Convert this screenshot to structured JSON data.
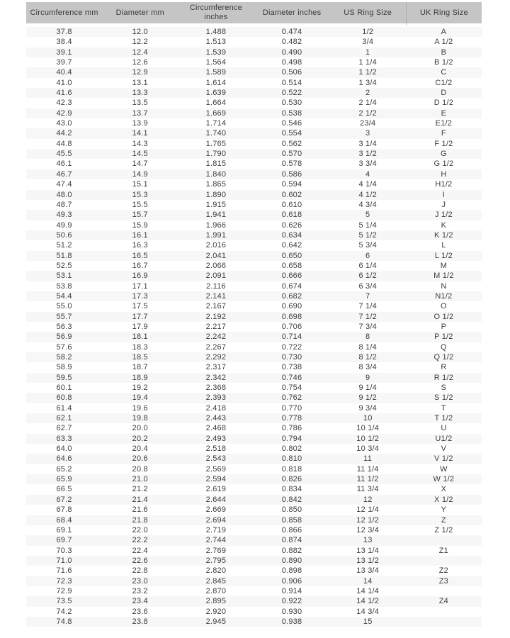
{
  "colors": {
    "header_bg": "#c5c5c5",
    "header_text": "#3a3a3a",
    "body_text": "#3c3c3c",
    "row_stripe": "#f7f7f7",
    "page_bg": "#ffffff"
  },
  "table": {
    "columns": [
      "Circumference mm",
      "Diameter mm",
      "Circumference inches",
      "Diameter inches",
      "US Ring Size",
      "UK Ring Size"
    ],
    "rows": [
      [
        "37.8",
        "12.0",
        "1.488",
        "0.474",
        "1/2",
        "A"
      ],
      [
        "38.4",
        "12.2",
        "1.513",
        "0.482",
        "3/4",
        "A 1/2"
      ],
      [
        "39.1",
        "12.4",
        "1.539",
        "0.490",
        "1",
        "B"
      ],
      [
        "39.7",
        "12.6",
        "1.564",
        "0.498",
        "1 1/4",
        "B 1/2"
      ],
      [
        "40.4",
        "12.9",
        "1.589",
        "0.506",
        "1 1/2",
        "C"
      ],
      [
        "41.0",
        "13.1",
        "1.614",
        "0.514",
        "1 3/4",
        "C1/2"
      ],
      [
        "41.6",
        "13.3",
        "1.639",
        "0.522",
        "2",
        "D"
      ],
      [
        "42.3",
        "13.5",
        "1.664",
        "0.530",
        "2 1/4",
        "D 1/2"
      ],
      [
        "42.9",
        "13.7",
        "1.669",
        "0.538",
        "2 1/2",
        "E"
      ],
      [
        "43.0",
        "13.9",
        "1.714",
        "0.546",
        "23/4",
        "E1/2"
      ],
      [
        "44.2",
        "14.1",
        "1.740",
        "0.554",
        "3",
        "F"
      ],
      [
        "44.8",
        "14.3",
        "1.765",
        "0.562",
        "3 1/4",
        "F 1/2"
      ],
      [
        "45.5",
        "14.5",
        "1.790",
        "0.570",
        "3 1/2",
        "G"
      ],
      [
        "46.1",
        "14.7",
        "1.815",
        "0.578",
        "3 3/4",
        "G 1/2"
      ],
      [
        "46.7",
        "14.9",
        "1.840",
        "0.586",
        "4",
        "H"
      ],
      [
        "47.4",
        "15.1",
        "1.865",
        "0.594",
        "4 1/4",
        "H1/2"
      ],
      [
        "48.0",
        "15.3",
        "1.890",
        "0.602",
        "4 1/2",
        "I"
      ],
      [
        "48.7",
        "15.5",
        "1.915",
        "0.610",
        "4 3/4",
        "J"
      ],
      [
        "49.3",
        "15.7",
        "1.941",
        "0.618",
        "5",
        "J 1/2"
      ],
      [
        "49.9",
        "15.9",
        "1.966",
        "0.626",
        "5 1/4",
        "K"
      ],
      [
        "50.6",
        "16.1",
        "1.991",
        "0.634",
        "5 1/2",
        "K 1/2"
      ],
      [
        "51.2",
        "16.3",
        "2.016",
        "0.642",
        "5 3/4",
        "L"
      ],
      [
        "51.8",
        "16.5",
        "2.041",
        "0.650",
        "6",
        "L 1/2"
      ],
      [
        "52.5",
        "16.7",
        "2.066",
        "0.658",
        "6 1/4",
        "M"
      ],
      [
        "53.1",
        "16.9",
        "2.091",
        "0.666",
        "6 1/2",
        "M 1/2"
      ],
      [
        "53.8",
        "17.1",
        "2.116",
        "0.674",
        "6 3/4",
        "N"
      ],
      [
        "54.4",
        "17.3",
        "2.141",
        "0.682",
        "7",
        "N1/2"
      ],
      [
        "55.0",
        "17.5",
        "2.167",
        "0.690",
        "7 1/4",
        "O"
      ],
      [
        "55.7",
        "17.7",
        "2.192",
        "0.698",
        "7 1/2",
        "O 1/2"
      ],
      [
        "56.3",
        "17.9",
        "2.217",
        "0.706",
        "7 3/4",
        "P"
      ],
      [
        "56.9",
        "18.1",
        "2.242",
        "0.714",
        "8",
        "P 1/2"
      ],
      [
        "57.6",
        "18.3",
        "2.267",
        "0.722",
        "8 1/4",
        "Q"
      ],
      [
        "58.2",
        "18.5",
        "2.292",
        "0.730",
        "8 1/2",
        "Q 1/2"
      ],
      [
        "58.9",
        "18.7",
        "2.317",
        "0.738",
        "8 3/4",
        "R"
      ],
      [
        "59.5",
        "18.9",
        "2.342",
        "0.746",
        "9",
        "R 1/2"
      ],
      [
        "60.1",
        "19.2",
        "2.368",
        "0.754",
        "9 1/4",
        "S"
      ],
      [
        "60.8",
        "19.4",
        "2.393",
        "0.762",
        "9 1/2",
        "S 1/2"
      ],
      [
        "61.4",
        "19.6",
        "2.418",
        "0.770",
        "9 3/4",
        "T"
      ],
      [
        "62.1",
        "19.8",
        "2.443",
        "0.778",
        "10",
        "T 1/2"
      ],
      [
        "62.7",
        "20.0",
        "2.468",
        "0.786",
        "10 1/4",
        "U"
      ],
      [
        "63.3",
        "20.2",
        "2.493",
        "0.794",
        "10 1/2",
        "U1/2"
      ],
      [
        "64.0",
        "20.4",
        "2.518",
        "0.802",
        "10 3/4",
        "V"
      ],
      [
        "64.6",
        "20.6",
        "2.543",
        "0.810",
        "11",
        "V 1/2"
      ],
      [
        "65.2",
        "20.8",
        "2.569",
        "0.818",
        "11 1/4",
        "W"
      ],
      [
        "65.9",
        "21.0",
        "2.594",
        "0.826",
        "11 1/2",
        "W 1/2"
      ],
      [
        "66.5",
        "21.2",
        "2.619",
        "0.834",
        "11 3/4",
        "X"
      ],
      [
        "67.2",
        "21.4",
        "2.644",
        "0.842",
        "12",
        "X 1/2"
      ],
      [
        "67.8",
        "21.6",
        "2.669",
        "0.850",
        "12 1/4",
        "Y"
      ],
      [
        "68.4",
        "21.8",
        "2.694",
        "0.858",
        "12 1/2",
        "Z"
      ],
      [
        "69.1",
        "22.0",
        "2.719",
        "0.866",
        "12 3/4",
        "Z 1/2"
      ],
      [
        "69.7",
        "22.2",
        "2.744",
        "0.874",
        "13",
        ""
      ],
      [
        "70.3",
        "22.4",
        "2.769",
        "0.882",
        "13 1/4",
        "Z1"
      ],
      [
        "71.0",
        "22.6",
        "2.795",
        "0.890",
        "13 1/2",
        ""
      ],
      [
        "71.6",
        "22.8",
        "2.820",
        "0.898",
        "13 3/4",
        "Z2"
      ],
      [
        "72.3",
        "23.0",
        "2.845",
        "0.906",
        "14",
        "Z3"
      ],
      [
        "72.9",
        "23.2",
        "2.870",
        "0.914",
        "14 1/4",
        ""
      ],
      [
        "73.5",
        "23.4",
        "2.895",
        "0.922",
        "14 1/2",
        "Z4"
      ],
      [
        "74.2",
        "23.6",
        "2.920",
        "0.930",
        "14 3/4",
        ""
      ],
      [
        "74.8",
        "23.8",
        "2.945",
        "0.938",
        "15",
        ""
      ]
    ]
  }
}
